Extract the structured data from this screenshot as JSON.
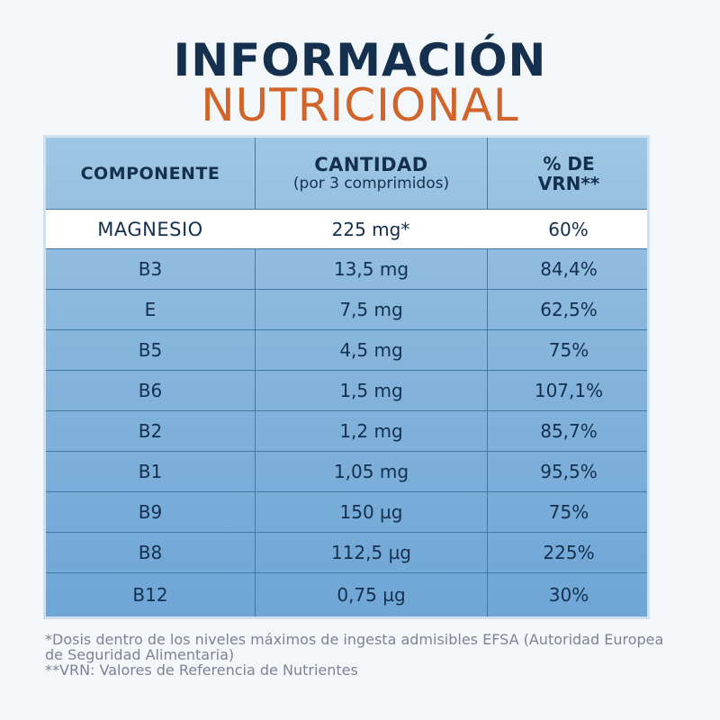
{
  "title": {
    "line1": "INFORMACIÓN",
    "line2": "NUTRICIONAL"
  },
  "table": {
    "headers": {
      "component": "COMPONENTE",
      "amount": "CANTIDAD",
      "amount_sub": "(por 3 comprimidos)",
      "vrn_line1": "% DE",
      "vrn_line2": "VRN**"
    },
    "rows": [
      {
        "component": "MAGNESIO",
        "amount": "225 mg*",
        "vrn": "60%"
      },
      {
        "component": "B3",
        "amount": "13,5 mg",
        "vrn": "84,4%"
      },
      {
        "component": "E",
        "amount": "7,5 mg",
        "vrn": "62,5%"
      },
      {
        "component": "B5",
        "amount": "4,5 mg",
        "vrn": "75%"
      },
      {
        "component": "B6",
        "amount": "1,5 mg",
        "vrn": "107,1%"
      },
      {
        "component": "B2",
        "amount": "1,2 mg",
        "vrn": "85,7%"
      },
      {
        "component": "B1",
        "amount": "1,05 mg",
        "vrn": "95,5%"
      },
      {
        "component": "B9",
        "amount": "150 µg",
        "vrn": "75%"
      },
      {
        "component": "B8",
        "amount": "112,5 µg",
        "vrn": "225%"
      },
      {
        "component": "B12",
        "amount": "0,75 µg",
        "vrn": "30%"
      }
    ]
  },
  "footnotes": {
    "note1": "*Dosis dentro de los niveles máximos de ingesta admisibles EFSA (Autoridad Europea de Seguridad Alimentaria)",
    "note2": "**VRN: Valores de Referencia de Nutrientes"
  },
  "colors": {
    "title_dark": "#14304e",
    "title_orange": "#d0642a",
    "table_blue": "#88b6dc",
    "highlight_row": "#ffffff"
  }
}
